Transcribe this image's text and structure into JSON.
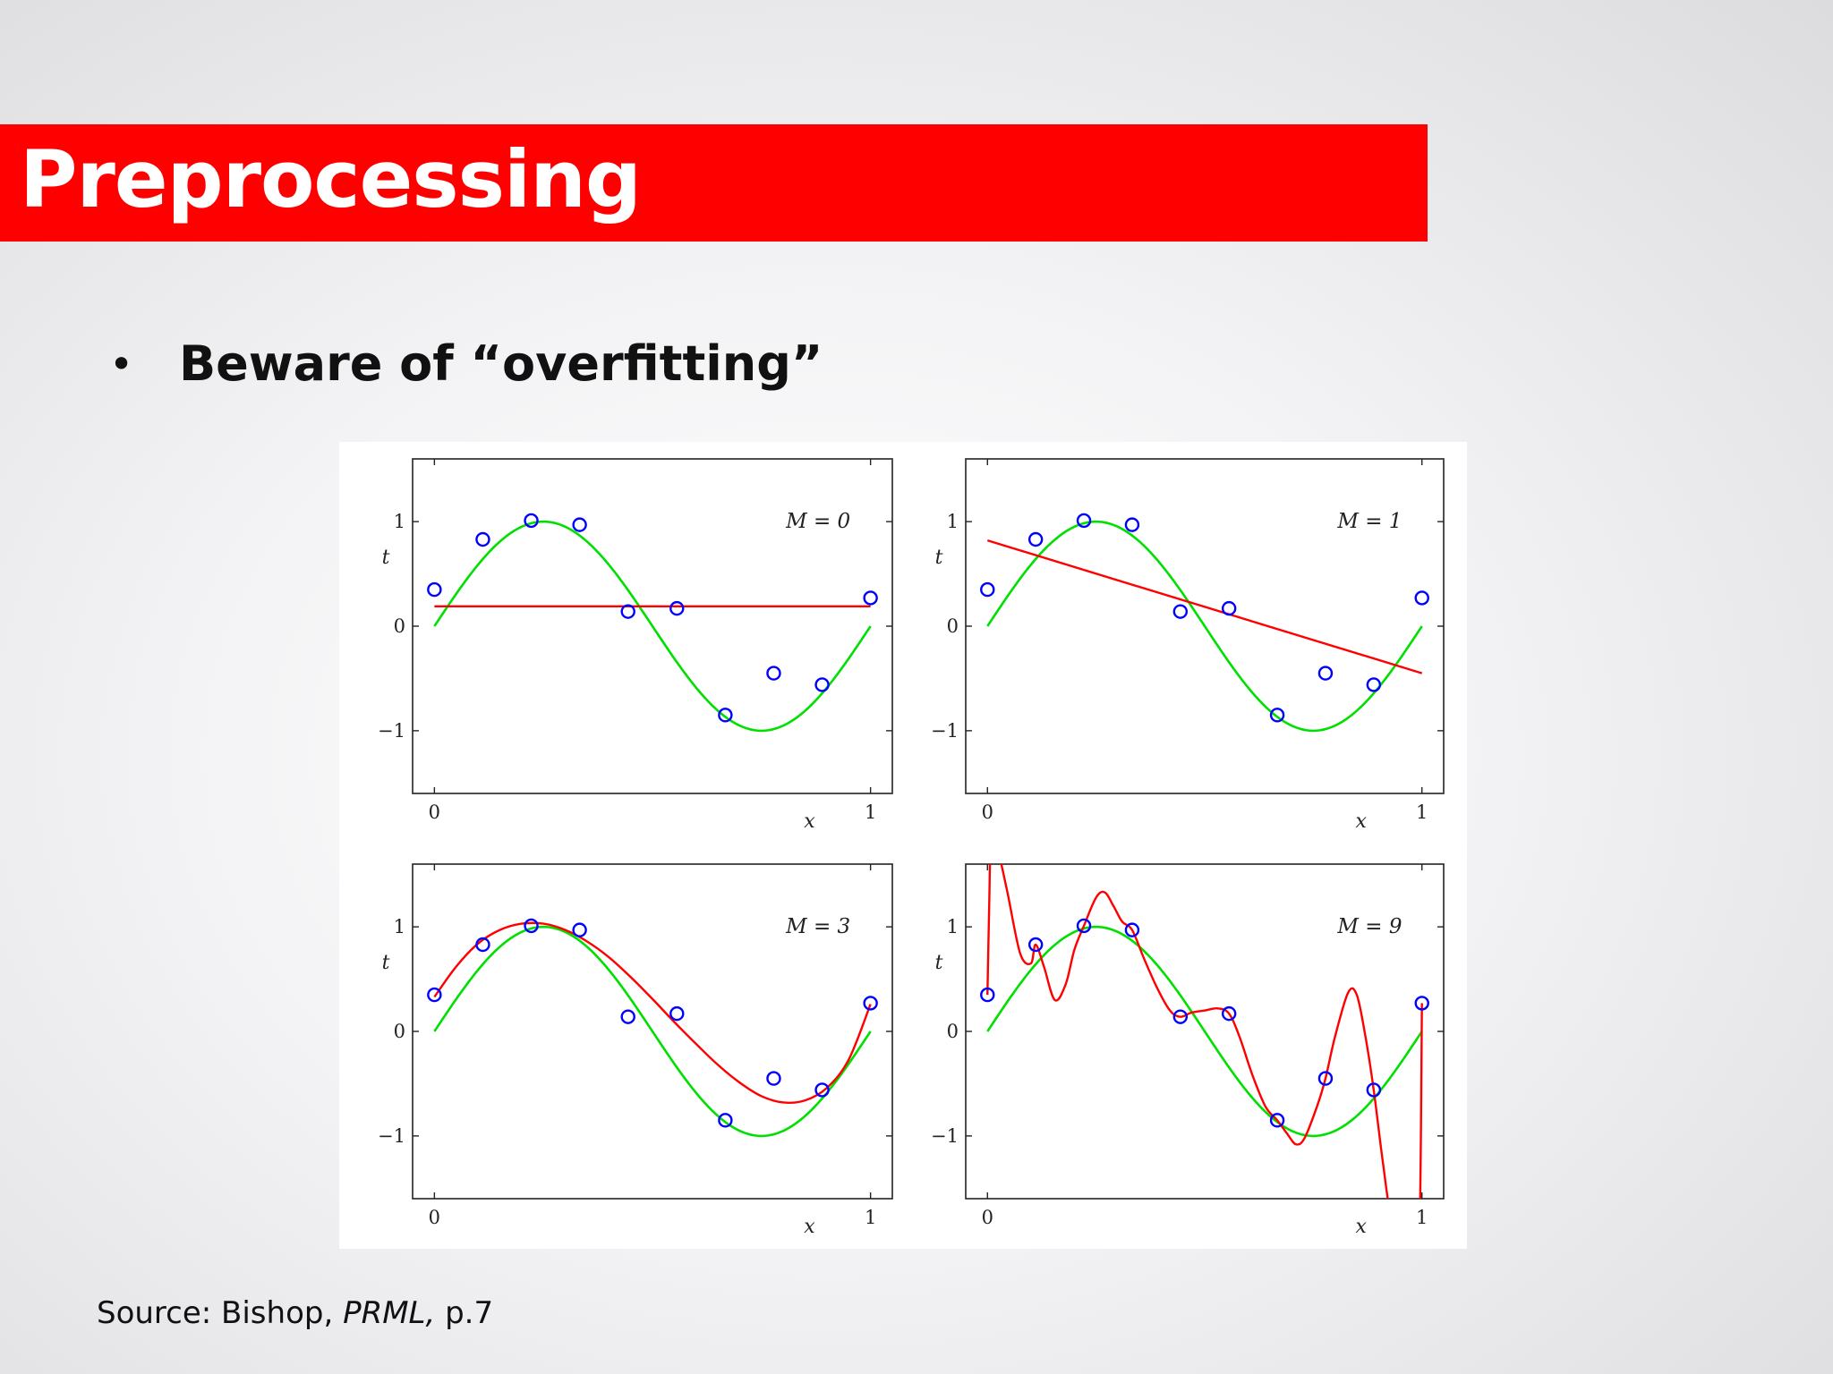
{
  "slide": {
    "title": "Preprocessing",
    "bullet": "Beware of “overfitting”",
    "source_prefix": "Source: Bishop, ",
    "source_italic": "PRML,",
    "source_suffix": " p.7"
  },
  "colors": {
    "title_bar": "#ff0000",
    "true_curve": "#00e000",
    "fit_curve": "#ff0000",
    "points": "#0000ff"
  },
  "chart_data": [
    {
      "type": "line",
      "title": "M = 0",
      "xlabel": "x",
      "ylabel": "t",
      "xlim": [
        -0.05,
        1.05
      ],
      "ylim": [
        -1.6,
        1.6
      ],
      "xticks": [
        "0",
        "1"
      ],
      "yticks": [
        "1",
        "0",
        "−1"
      ],
      "grid": false,
      "points": {
        "x": [
          0,
          0.111,
          0.222,
          0.333,
          0.444,
          0.556,
          0.667,
          0.778,
          0.889,
          1.0
        ],
        "y": [
          0.35,
          0.83,
          1.01,
          0.97,
          0.14,
          0.17,
          -0.85,
          -0.45,
          -0.56,
          0.27
        ]
      },
      "true_curve": "sin(2πx)",
      "fit_curve": {
        "x": [
          0,
          1
        ],
        "y": [
          0.19,
          0.19
        ]
      }
    },
    {
      "type": "line",
      "title": "M = 1",
      "xlabel": "x",
      "ylabel": "t",
      "xlim": [
        -0.05,
        1.05
      ],
      "ylim": [
        -1.6,
        1.6
      ],
      "xticks": [
        "0",
        "1"
      ],
      "yticks": [
        "1",
        "0",
        "−1"
      ],
      "grid": false,
      "points": {
        "x": [
          0,
          0.111,
          0.222,
          0.333,
          0.444,
          0.556,
          0.667,
          0.778,
          0.889,
          1.0
        ],
        "y": [
          0.35,
          0.83,
          1.01,
          0.97,
          0.14,
          0.17,
          -0.85,
          -0.45,
          -0.56,
          0.27
        ]
      },
      "true_curve": "sin(2πx)",
      "fit_curve": {
        "x": [
          0,
          1
        ],
        "y": [
          0.82,
          -0.45
        ]
      }
    },
    {
      "type": "line",
      "title": "M = 3",
      "xlabel": "x",
      "ylabel": "t",
      "xlim": [
        -0.05,
        1.05
      ],
      "ylim": [
        -1.6,
        1.6
      ],
      "xticks": [
        "0",
        "1"
      ],
      "yticks": [
        "1",
        "0",
        "−1"
      ],
      "grid": false,
      "points": {
        "x": [
          0,
          0.111,
          0.222,
          0.333,
          0.444,
          0.556,
          0.667,
          0.778,
          0.889,
          1.0
        ],
        "y": [
          0.35,
          0.83,
          1.01,
          0.97,
          0.14,
          0.17,
          -0.85,
          -0.45,
          -0.56,
          0.27
        ]
      },
      "true_curve": "sin(2πx)",
      "fit_curve": {
        "x": [
          0,
          0.05,
          0.1,
          0.15,
          0.2,
          0.25,
          0.3,
          0.35,
          0.4,
          0.45,
          0.5,
          0.55,
          0.6,
          0.65,
          0.7,
          0.75,
          0.8,
          0.85,
          0.9,
          0.95,
          1.0
        ],
        "y": [
          0.33,
          0.62,
          0.84,
          0.97,
          1.03,
          1.03,
          0.97,
          0.86,
          0.71,
          0.52,
          0.31,
          0.09,
          -0.12,
          -0.32,
          -0.49,
          -0.62,
          -0.68,
          -0.66,
          -0.54,
          -0.27,
          0.26
        ]
      }
    },
    {
      "type": "line",
      "title": "M = 9",
      "xlabel": "x",
      "ylabel": "t",
      "xlim": [
        -0.05,
        1.05
      ],
      "ylim": [
        -1.6,
        1.6
      ],
      "xticks": [
        "0",
        "1"
      ],
      "yticks": [
        "1",
        "0",
        "−1"
      ],
      "grid": false,
      "points": {
        "x": [
          0,
          0.111,
          0.222,
          0.333,
          0.444,
          0.556,
          0.667,
          0.778,
          0.889,
          1.0
        ],
        "y": [
          0.35,
          0.83,
          1.01,
          0.97,
          0.14,
          0.17,
          -0.85,
          -0.45,
          -0.56,
          0.27
        ]
      },
      "true_curve": "sin(2πx)",
      "fit_curve": {
        "x": [
          0,
          0.004,
          0.008,
          0.02,
          0.045,
          0.075,
          0.1,
          0.111,
          0.13,
          0.155,
          0.18,
          0.2,
          0.222,
          0.25,
          0.27,
          0.29,
          0.31,
          0.333,
          0.36,
          0.39,
          0.42,
          0.444,
          0.47,
          0.5,
          0.53,
          0.556,
          0.58,
          0.61,
          0.64,
          0.667,
          0.69,
          0.71,
          0.73,
          0.76,
          0.778,
          0.8,
          0.83,
          0.85,
          0.87,
          0.889,
          0.91,
          0.93,
          0.95,
          0.97,
          0.985,
          0.995,
          1.0
        ],
        "y": [
          0.35,
          1.2,
          1.8,
          1.8,
          1.35,
          0.75,
          0.65,
          0.83,
          0.62,
          0.3,
          0.45,
          0.78,
          1.01,
          1.28,
          1.33,
          1.2,
          1.05,
          0.97,
          0.7,
          0.42,
          0.2,
          0.14,
          0.18,
          0.2,
          0.22,
          0.17,
          -0.05,
          -0.42,
          -0.72,
          -0.85,
          -0.98,
          -1.08,
          -1.02,
          -0.7,
          -0.45,
          -0.05,
          0.37,
          0.35,
          -0.05,
          -0.56,
          -1.25,
          -1.8,
          -1.8,
          -1.8,
          -1.8,
          -1.8,
          0.27
        ]
      }
    }
  ]
}
